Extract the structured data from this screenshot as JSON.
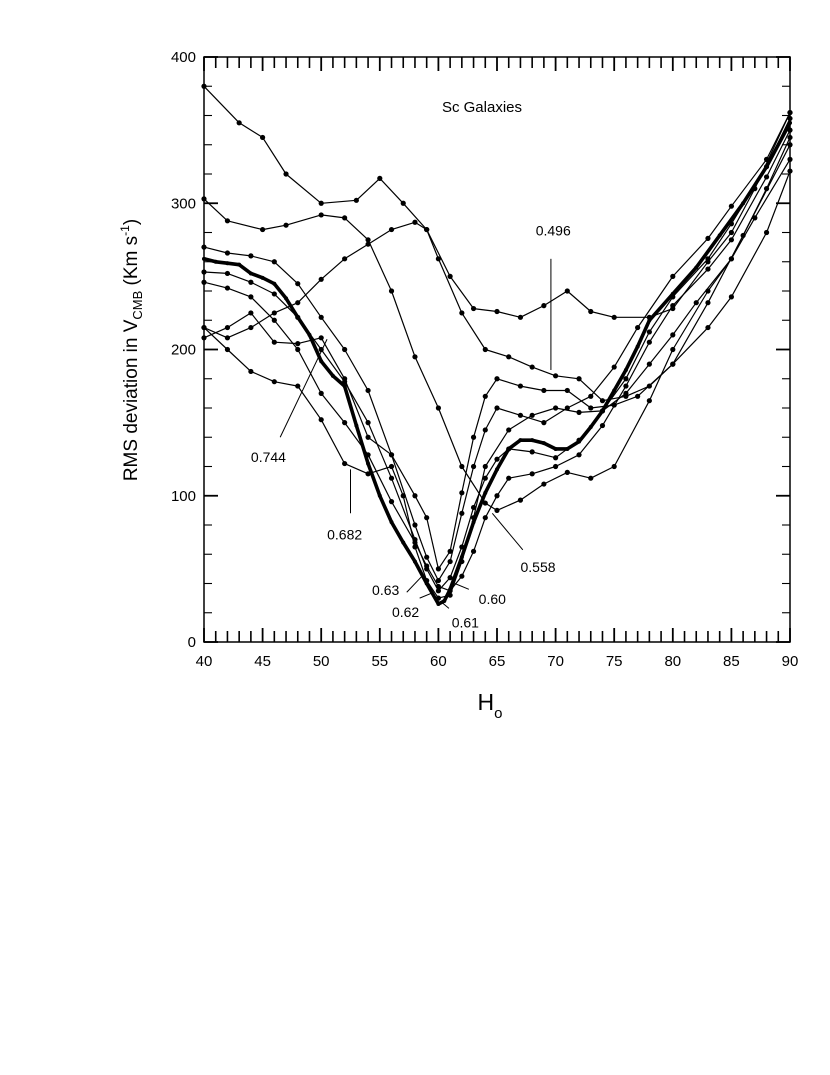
{
  "chart_data": {
    "type": "line",
    "title": "Sc Galaxies",
    "xlabel": {
      "main": "H",
      "sub": "o"
    },
    "ylabel": {
      "prefix": "RMS deviation in V",
      "sub": "CMB",
      "unit_open": " (Km s",
      "unit_sup": "-1",
      "unit_close": ")"
    },
    "xlim": [
      40,
      90
    ],
    "ylim": [
      0,
      400
    ],
    "x_ticks": [
      40,
      45,
      50,
      55,
      60,
      65,
      70,
      75,
      80,
      85,
      90
    ],
    "y_ticks": [
      0,
      100,
      200,
      300,
      400
    ],
    "grid": false,
    "legend": "none",
    "series": [
      {
        "label": "0.496",
        "bold": false,
        "x": [
          40,
          43,
          45,
          47,
          50,
          53,
          55,
          57,
          59,
          61,
          63,
          65,
          67,
          69,
          71,
          73,
          75,
          78,
          80,
          83,
          85,
          87,
          90
        ],
        "y": [
          380,
          355,
          345,
          320,
          300,
          302,
          317,
          300,
          282,
          250,
          228,
          226,
          222,
          230,
          240,
          226,
          222,
          222,
          228,
          260,
          280,
          310,
          362
        ]
      },
      {
        "label": "0.558",
        "bold": false,
        "x": [
          40,
          42,
          45,
          47,
          50,
          52,
          54,
          56,
          58,
          60,
          62,
          64,
          65,
          67,
          69,
          71,
          73,
          75,
          78,
          80,
          83,
          85,
          87,
          90
        ],
        "y": [
          303,
          288,
          282,
          285,
          292,
          290,
          275,
          240,
          195,
          160,
          120,
          95,
          90,
          97,
          108,
          116,
          112,
          120,
          165,
          200,
          240,
          262,
          290,
          330
        ]
      },
      {
        "label": "0.60",
        "bold": false,
        "x": [
          40,
          42,
          44,
          46,
          48,
          50,
          52,
          54,
          56,
          58,
          59,
          60,
          61,
          62,
          63,
          64,
          65,
          66,
          68,
          70,
          72,
          74,
          76,
          78,
          80,
          83,
          85,
          88,
          90
        ],
        "y": [
          246,
          242,
          236,
          220,
          200,
          170,
          150,
          128,
          96,
          68,
          52,
          38,
          35,
          45,
          62,
          85,
          100,
          112,
          115,
          120,
          128,
          148,
          175,
          205,
          230,
          255,
          275,
          318,
          350
        ]
      },
      {
        "label": "0.61",
        "bold": true,
        "x": [
          40,
          41,
          42,
          43,
          44,
          45,
          46,
          47,
          48,
          49,
          50,
          51,
          52,
          53,
          54,
          55,
          56,
          57,
          58,
          59,
          60,
          60.5,
          61,
          62,
          63,
          64,
          65,
          66,
          67,
          68,
          69,
          70,
          71,
          72,
          73,
          74,
          75,
          76,
          77,
          78,
          80,
          82,
          84,
          86,
          88,
          90
        ],
        "y": [
          262,
          260,
          259,
          258,
          252,
          249,
          245,
          235,
          222,
          210,
          192,
          182,
          175,
          148,
          122,
          100,
          82,
          68,
          55,
          40,
          26,
          28,
          36,
          58,
          82,
          102,
          118,
          132,
          138,
          138,
          136,
          132,
          132,
          137,
          147,
          158,
          172,
          186,
          202,
          220,
          238,
          256,
          278,
          300,
          325,
          355
        ]
      },
      {
        "label": "0.62",
        "bold": false,
        "x": [
          40,
          42,
          44,
          46,
          48,
          50,
          52,
          54,
          56,
          58,
          59,
          60,
          61,
          62,
          63,
          64,
          65,
          66,
          68,
          70,
          72,
          74,
          76,
          78,
          80,
          83,
          85,
          88,
          90
        ],
        "y": [
          253,
          252,
          246,
          238,
          222,
          200,
          178,
          150,
          112,
          70,
          50,
          35,
          44,
          65,
          92,
          112,
          125,
          132,
          130,
          126,
          138,
          158,
          180,
          212,
          236,
          262,
          286,
          325,
          358
        ]
      },
      {
        "label": "0.63",
        "bold": false,
        "x": [
          40,
          42,
          44,
          46,
          48,
          50,
          52,
          54,
          56,
          58,
          59,
          60,
          61,
          62,
          63,
          64,
          65,
          67,
          69,
          71,
          73,
          75,
          77,
          80,
          83,
          85,
          88,
          90
        ],
        "y": [
          270,
          266,
          264,
          260,
          245,
          222,
          200,
          172,
          128,
          80,
          58,
          42,
          55,
          88,
          120,
          145,
          160,
          155,
          150,
          160,
          168,
          188,
          215,
          250,
          276,
          298,
          330,
          362
        ]
      },
      {
        "label": "0.682",
        "bold": false,
        "x": [
          40,
          42,
          44,
          46,
          48,
          50,
          52,
          54,
          56,
          57,
          58,
          59,
          60,
          61,
          62,
          63,
          64,
          66,
          68,
          70,
          72,
          74,
          76,
          78,
          80,
          82,
          85,
          88,
          90
        ],
        "y": [
          215,
          200,
          185,
          178,
          175,
          152,
          122,
          115,
          120,
          100,
          65,
          42,
          30,
          32,
          55,
          85,
          120,
          145,
          155,
          160,
          157,
          158,
          170,
          190,
          210,
          232,
          262,
          310,
          345
        ]
      },
      {
        "label": "0.744",
        "bold": false,
        "x": [
          40,
          42,
          44,
          46,
          48,
          50,
          52,
          54,
          56,
          58,
          59,
          60,
          61,
          62,
          63,
          64,
          65,
          67,
          69,
          71,
          73,
          75,
          77,
          80,
          83,
          86,
          90
        ],
        "y": [
          208,
          215,
          225,
          205,
          204,
          208,
          180,
          140,
          128,
          100,
          85,
          50,
          62,
          102,
          140,
          168,
          180,
          175,
          172,
          172,
          160,
          162,
          168,
          190,
          232,
          278,
          340
        ]
      },
      {
        "label": "",
        "bold": false,
        "x": [
          40,
          42,
          44,
          46,
          48,
          50,
          52,
          54,
          56,
          58,
          59,
          60,
          62,
          64,
          66,
          68,
          70,
          72,
          74,
          76,
          78,
          80,
          83,
          85,
          88,
          90
        ],
        "y": [
          215,
          208,
          215,
          225,
          232,
          248,
          262,
          272,
          282,
          287,
          282,
          262,
          225,
          200,
          195,
          188,
          182,
          180,
          165,
          168,
          175,
          190,
          215,
          236,
          280,
          322
        ]
      }
    ],
    "annotations": [
      {
        "text": "0.496",
        "text_x": 69.8,
        "text_y": 278,
        "lx1": 69.6,
        "ly1": 262,
        "lx2": 69.6,
        "ly2": 186
      },
      {
        "text": "0.744",
        "text_x": 45.5,
        "text_y": 123,
        "lx1": 46.5,
        "ly1": 140,
        "lx2": 50.5,
        "ly2": 207
      },
      {
        "text": "0.682",
        "text_x": 52,
        "text_y": 70,
        "lx1": 52.5,
        "ly1": 88,
        "lx2": 52.5,
        "ly2": 118
      },
      {
        "text": "0.558",
        "text_x": 68.5,
        "text_y": 48,
        "lx1": 67.2,
        "ly1": 63,
        "lx2": 64.6,
        "ly2": 88
      },
      {
        "text": "0.63",
        "text_x": 55.5,
        "text_y": 32,
        "lx1": 57.3,
        "ly1": 34,
        "lx2": 58.6,
        "ly2": 45
      },
      {
        "text": "0.62",
        "text_x": 57.2,
        "text_y": 17,
        "lx1": 58.4,
        "ly1": 30,
        "lx2": 59.6,
        "ly2": 34
      },
      {
        "text": "0.61",
        "text_x": 62.3,
        "text_y": 10,
        "lx1": 60.9,
        "ly1": 23,
        "lx2": 60.3,
        "ly2": 27
      },
      {
        "text": "0.60",
        "text_x": 64.6,
        "text_y": 26,
        "lx1": 62.6,
        "ly1": 36,
        "lx2": 61.4,
        "ly2": 40
      }
    ]
  }
}
